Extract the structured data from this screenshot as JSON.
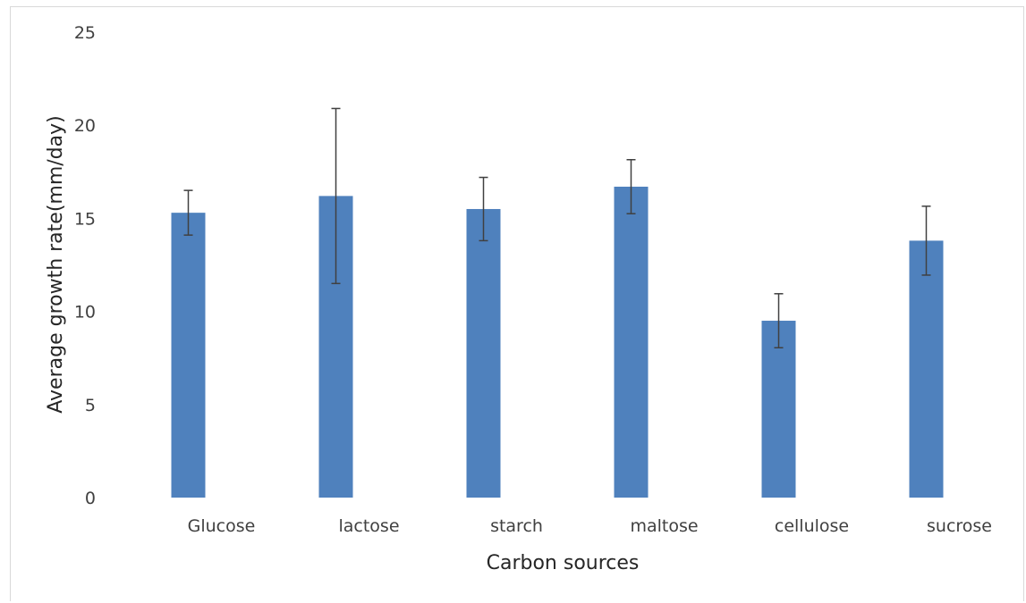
{
  "chart_data": {
    "type": "bar",
    "categories": [
      "Glucose",
      "lactose",
      "starch",
      "maltose",
      "cellulose",
      "sucrose"
    ],
    "series": [
      {
        "values": [
          15.3,
          16.2,
          15.5,
          16.7,
          9.5,
          13.8
        ],
        "error": [
          1.2,
          4.7,
          1.7,
          1.45,
          1.45,
          1.85
        ]
      }
    ],
    "title": "",
    "xlabel": "Carbon sources",
    "ylabel": "Average growth rate(mm/day)",
    "ylim": [
      0,
      25
    ],
    "yticks": [
      0,
      5,
      10,
      15,
      20,
      25
    ],
    "grid": false,
    "legend": "none",
    "colors": {
      "bar": "#4f81bd",
      "error_bar": "#404040"
    }
  }
}
